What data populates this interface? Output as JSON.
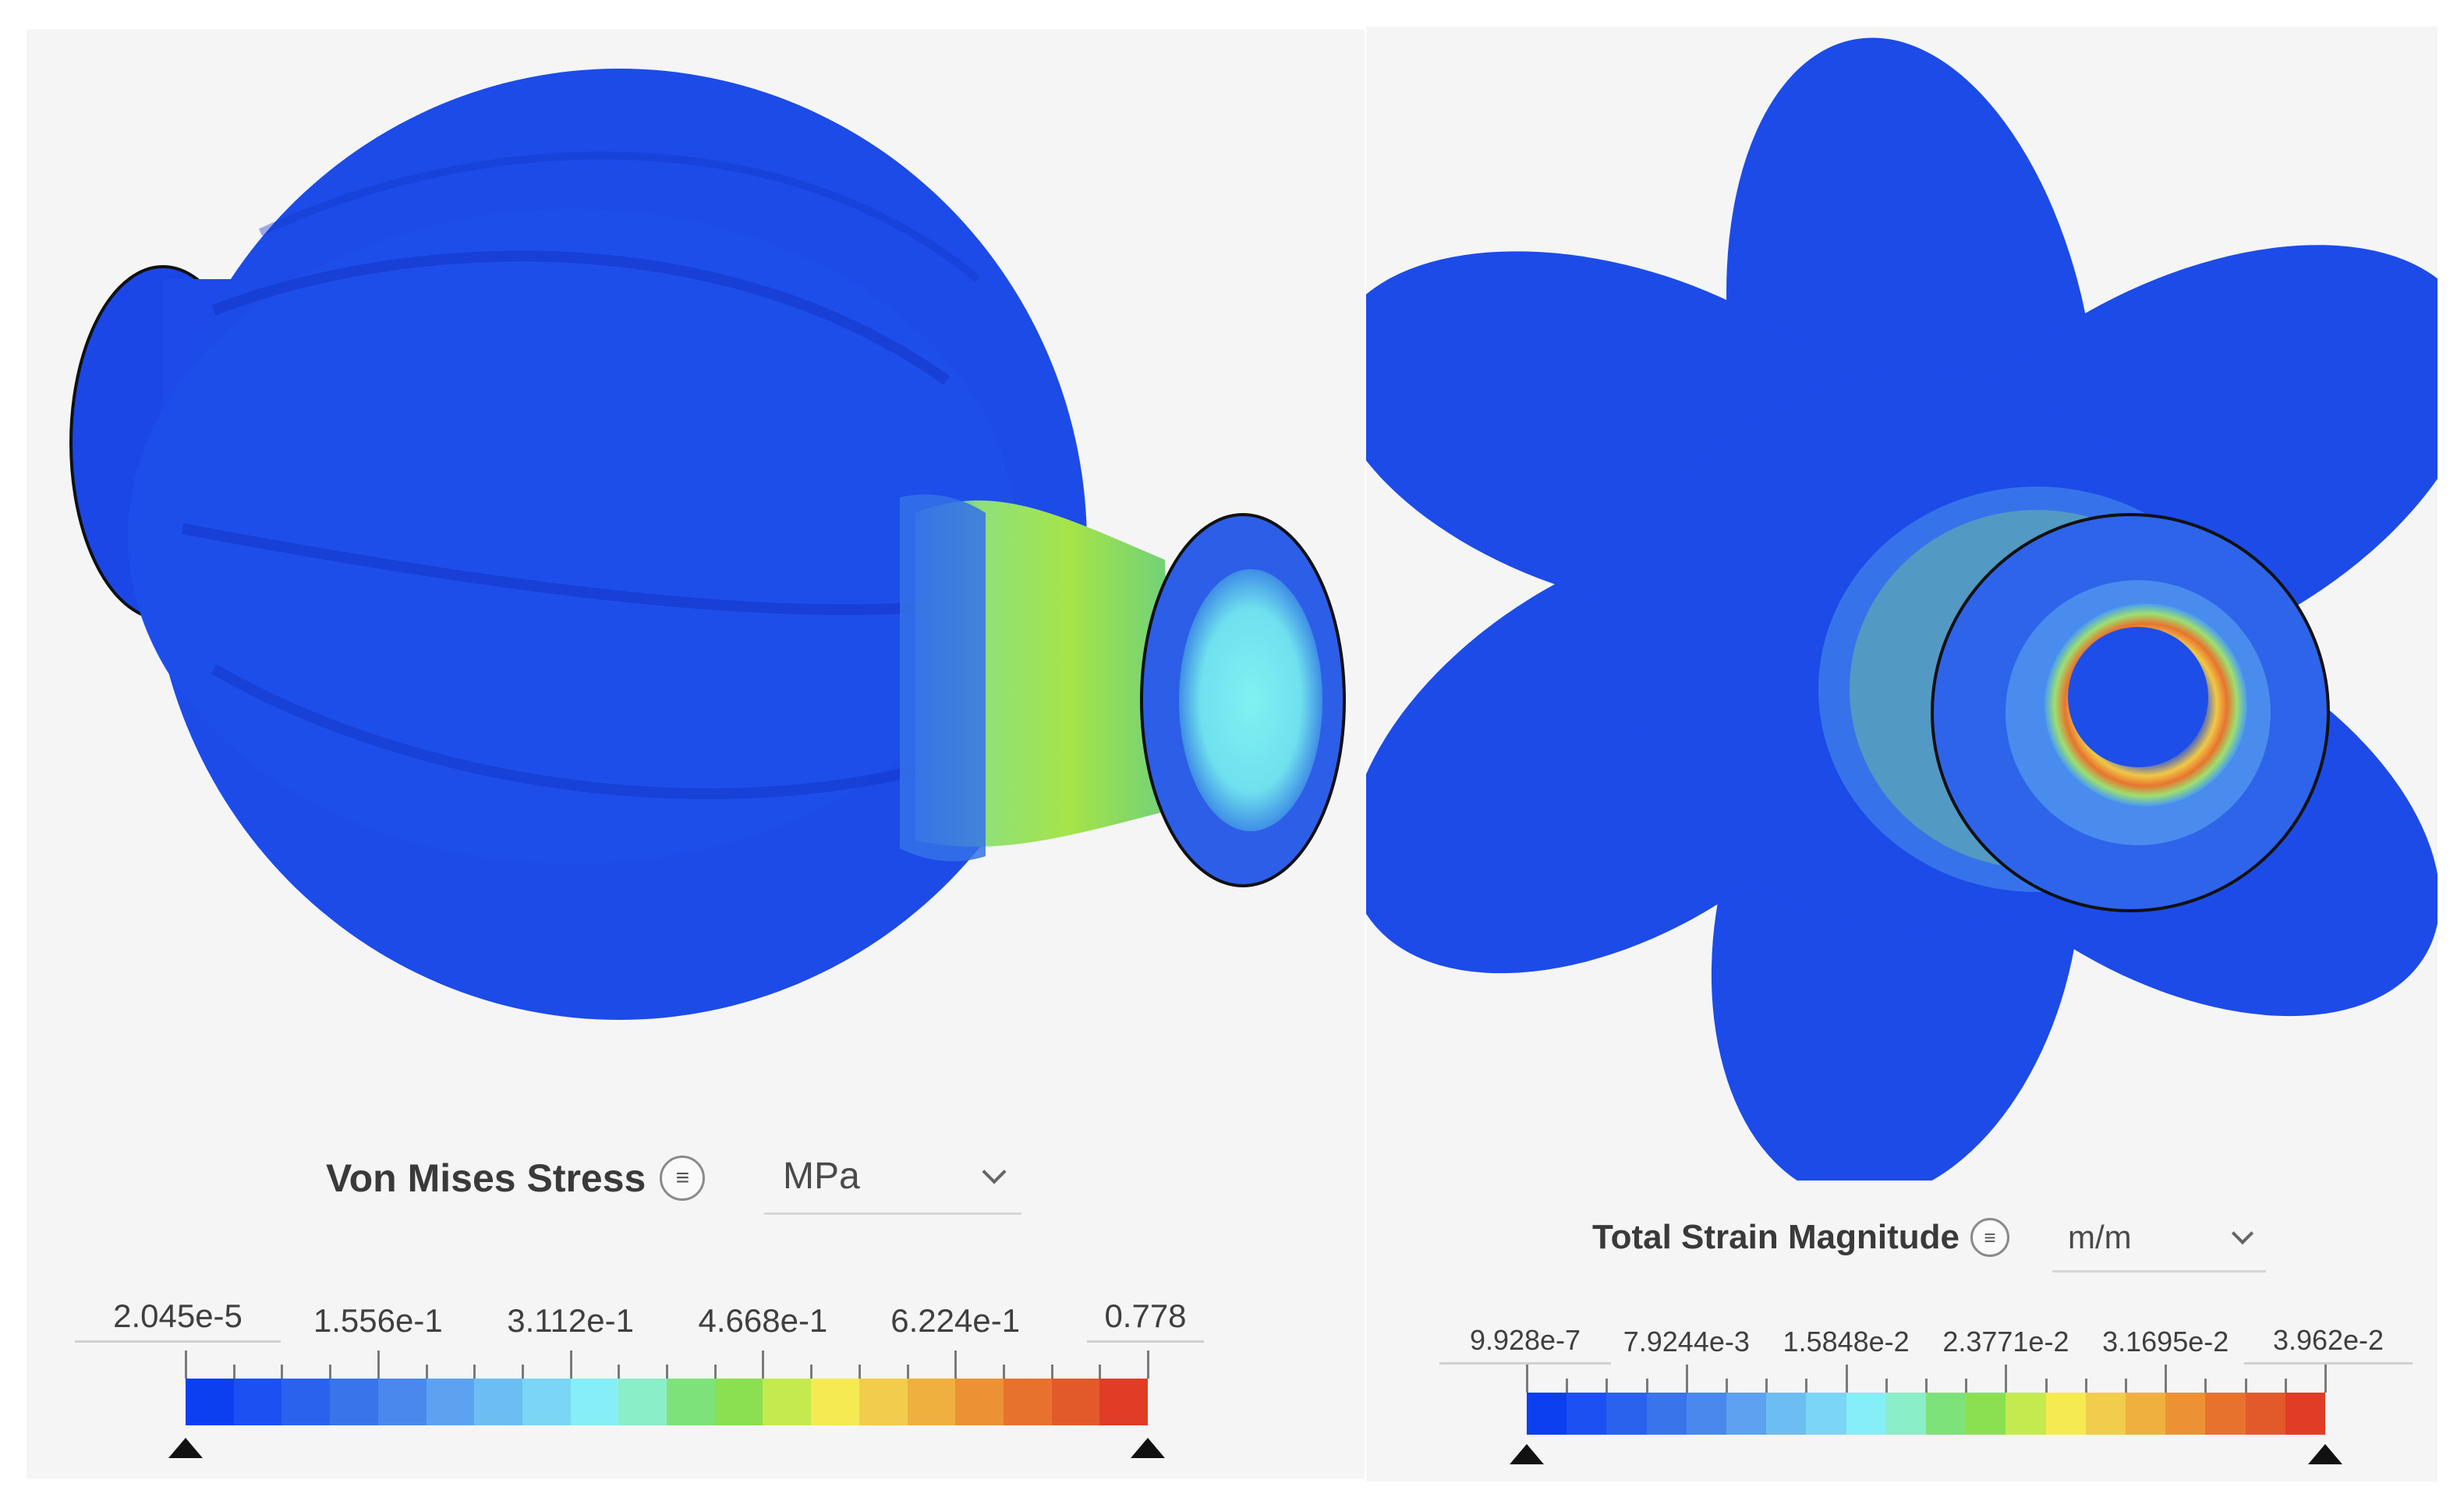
{
  "left_panel": {
    "legend": {
      "title": "Von Mises Stress",
      "info_icon": "list-icon",
      "unit": "MPa",
      "dropdown_icon": "chevron-down-icon",
      "min_label": "2.045e-5",
      "max_label": "0.778",
      "tick_labels": [
        "1.556e-1",
        "3.112e-1",
        "4.668e-1",
        "6.224e-1"
      ]
    }
  },
  "right_panel": {
    "legend": {
      "title": "Total Strain Magnitude",
      "info_icon": "list-icon",
      "unit": "m/m",
      "dropdown_icon": "chevron-down-icon",
      "min_label": "9.928e-7",
      "max_label": "3.962e-2",
      "tick_labels": [
        "7.9244e-3",
        "1.5848e-2",
        "2.3771e-2",
        "3.1695e-2"
      ]
    }
  },
  "colormap": [
    "#0b3ff0",
    "#1c50f2",
    "#2a62ee",
    "#3a74ea",
    "#4a88ee",
    "#5ca2f0",
    "#6cbef2",
    "#7ad6f4",
    "#86eef6",
    "#8aeec8",
    "#7ee27a",
    "#8ae050",
    "#c4ea50",
    "#f6ea52",
    "#f2cc4c",
    "#f0b040",
    "#ec9234",
    "#e6722e",
    "#e25a2a",
    "#e03c26"
  ]
}
